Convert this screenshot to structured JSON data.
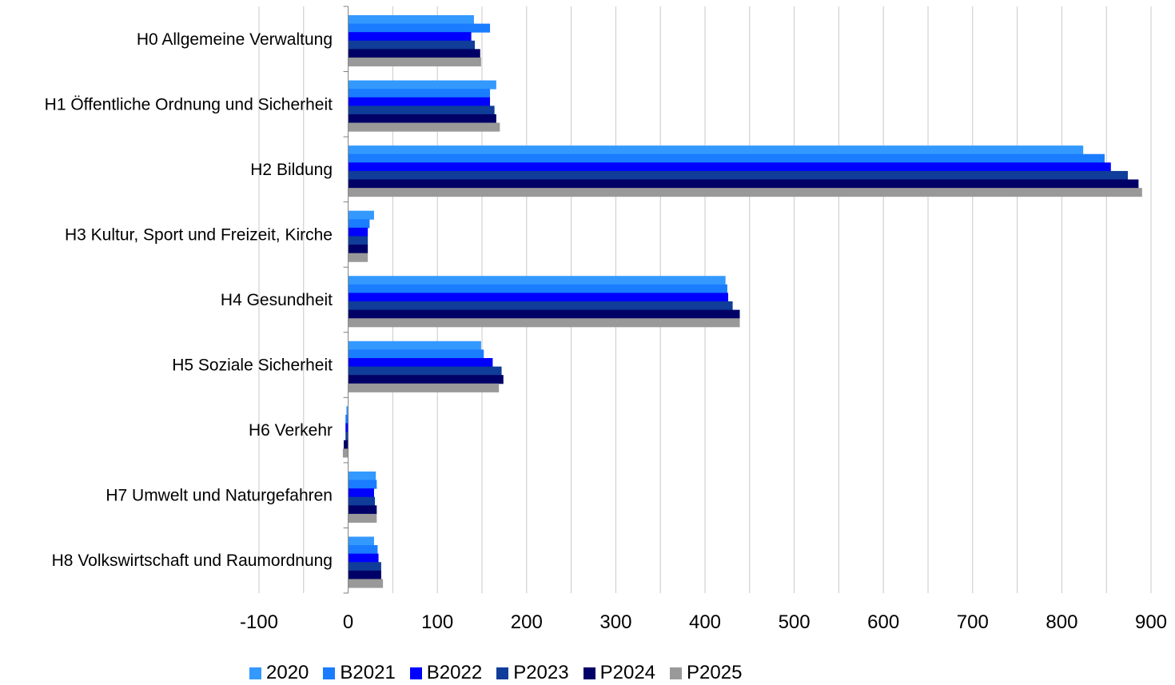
{
  "chart_data": {
    "type": "bar",
    "orientation": "horizontal",
    "categories": [
      "H0 Allgemeine Verwaltung",
      "H1 Öffentliche Ordnung und Sicherheit",
      "H2 Bildung",
      "H3 Kultur, Sport und Freizeit, Kirche",
      "H4 Gesundheit",
      "H5 Soziale Sicherheit",
      "H6 Verkehr",
      "H7 Umwelt und Naturgefahren",
      "H8 Volkswirtschaft und Raumordnung"
    ],
    "series": [
      {
        "name": "2020",
        "color": "#3399ff",
        "values": [
          141,
          166,
          824,
          29,
          423,
          149,
          -2,
          31,
          29
        ]
      },
      {
        "name": "B2021",
        "color": "#1a7cff",
        "values": [
          159,
          159,
          848,
          24,
          425,
          152,
          -3,
          32,
          33
        ]
      },
      {
        "name": "B2022",
        "color": "#0000ff",
        "values": [
          138,
          159,
          855,
          22,
          426,
          162,
          -3,
          29,
          34
        ]
      },
      {
        "name": "P2023",
        "color": "#0f3d99",
        "values": [
          142,
          164,
          874,
          22,
          431,
          172,
          -3,
          30,
          37
        ]
      },
      {
        "name": "P2024",
        "color": "#000066",
        "values": [
          148,
          166,
          886,
          22,
          439,
          174,
          -5,
          32,
          37
        ]
      },
      {
        "name": "P2025",
        "color": "#999999",
        "values": [
          149,
          170,
          890,
          22,
          439,
          169,
          -6,
          32,
          39
        ]
      }
    ],
    "xlim": [
      -100,
      900
    ],
    "xticks": [
      "-100",
      "0",
      "100",
      "200",
      "300",
      "400",
      "500",
      "600",
      "700",
      "800",
      "900"
    ],
    "grid": "vertical",
    "legend": "bottom",
    "title": "",
    "xlabel": "",
    "ylabel": ""
  }
}
